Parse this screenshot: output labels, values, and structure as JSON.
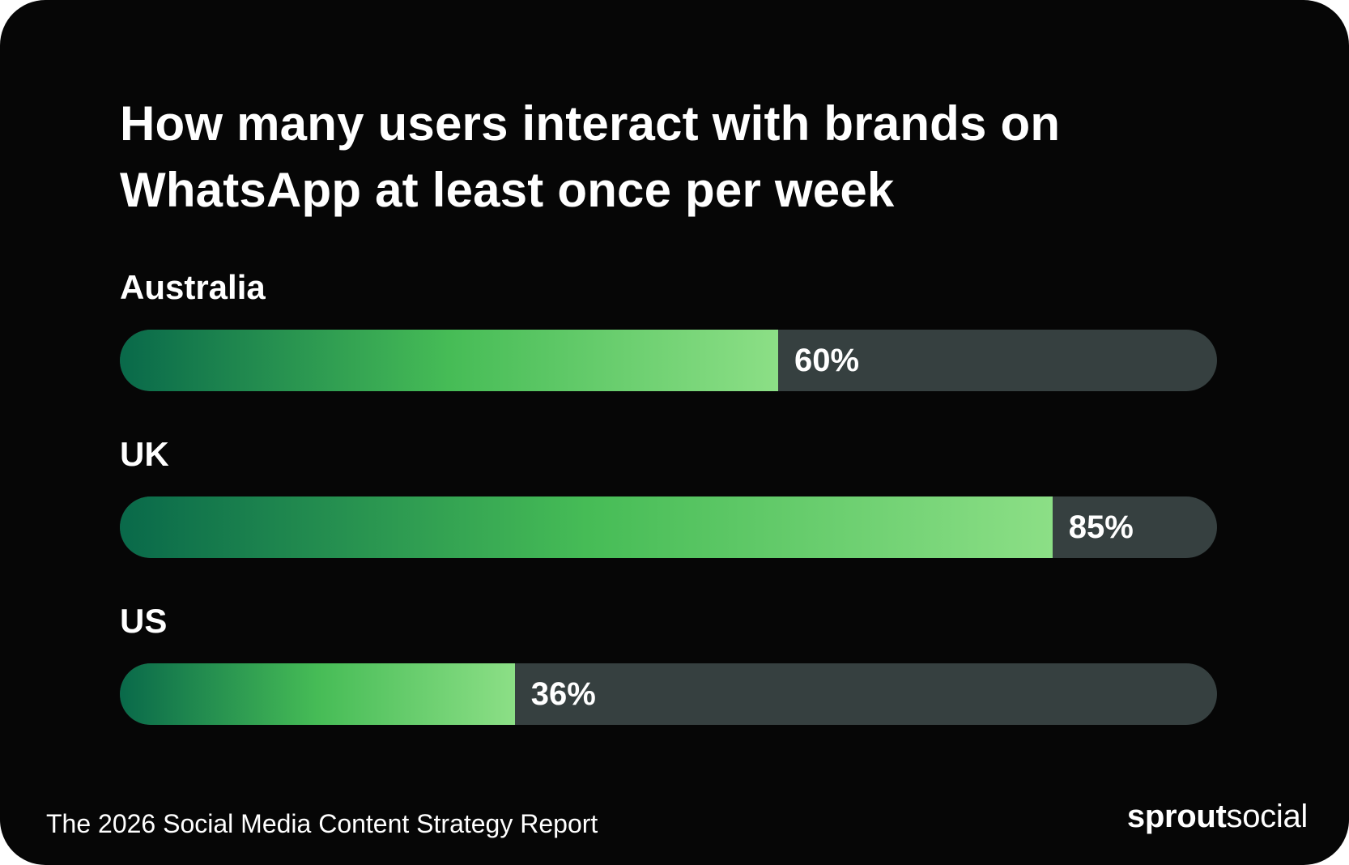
{
  "page": {
    "background": "#060606",
    "text_color": "#ffffff"
  },
  "chart_data": {
    "type": "bar",
    "orientation": "horizontal",
    "title": "How many users interact with brands on WhatsApp at least once per week",
    "title_lines": [
      "How many users interact with brands on",
      "WhatsApp at least once per week"
    ],
    "categories": [
      "Australia",
      "UK",
      "US"
    ],
    "values": [
      60,
      85,
      36
    ],
    "value_labels": [
      "60%",
      "85%",
      "36%"
    ],
    "unit": "%",
    "xlim": [
      0,
      100
    ],
    "grid": false,
    "legend": "none",
    "track_color": "#364040",
    "bar_gradient_start": "#09694a",
    "bar_gradient_mid": "#46bc56",
    "bar_gradient_end": "#8cdf86"
  },
  "footer": {
    "source": "The 2026 Social Media Content Strategy Report",
    "brand_bold": "sprout",
    "brand_light": "social"
  }
}
